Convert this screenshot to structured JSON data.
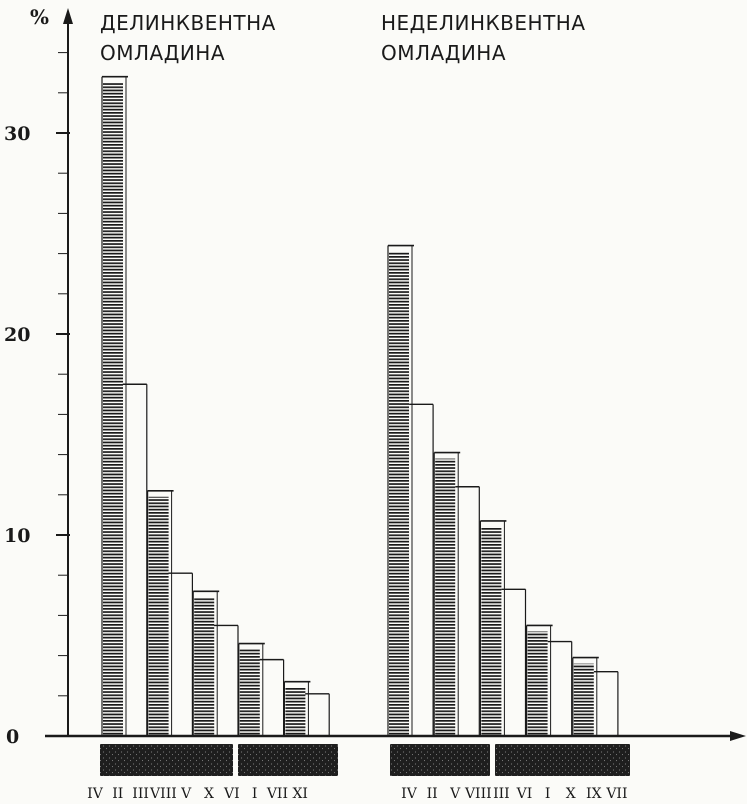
{
  "chart_data": {
    "type": "bar",
    "ylabel": "%",
    "ylim": [
      0,
      35
    ],
    "yticks": [
      0,
      10,
      20,
      30
    ],
    "grid": false,
    "groups": [
      {
        "title_lines": [
          "ДЕЛИНКВЕНТНА",
          "ОМЛАДИНА"
        ],
        "categories": [
          "IV",
          "II",
          "III",
          "VIII",
          "V",
          "X",
          "VI",
          "I",
          "VII",
          "XI"
        ],
        "values": [
          32.8,
          17.5,
          12.2,
          8.1,
          7.2,
          5.5,
          4.6,
          3.8,
          2.7,
          2.1
        ],
        "hatched": [
          true,
          false,
          true,
          false,
          true,
          false,
          true,
          false,
          true,
          false
        ]
      },
      {
        "title_lines": [
          "НЕДЕЛИНКВЕНТНА",
          "ОМЛАДИНА"
        ],
        "categories": [
          "IV",
          "II",
          "V",
          "VIII",
          "III",
          "VI",
          "I",
          "X",
          "IX",
          "VII"
        ],
        "values": [
          24.4,
          16.5,
          14.1,
          12.4,
          10.7,
          7.3,
          5.5,
          4.7,
          3.9,
          3.2
        ],
        "hatched": [
          true,
          false,
          true,
          false,
          true,
          false,
          true,
          false,
          true,
          false
        ]
      }
    ]
  },
  "colors": {
    "ink": "#1a1a1a",
    "paper": "#fbfbf8"
  }
}
